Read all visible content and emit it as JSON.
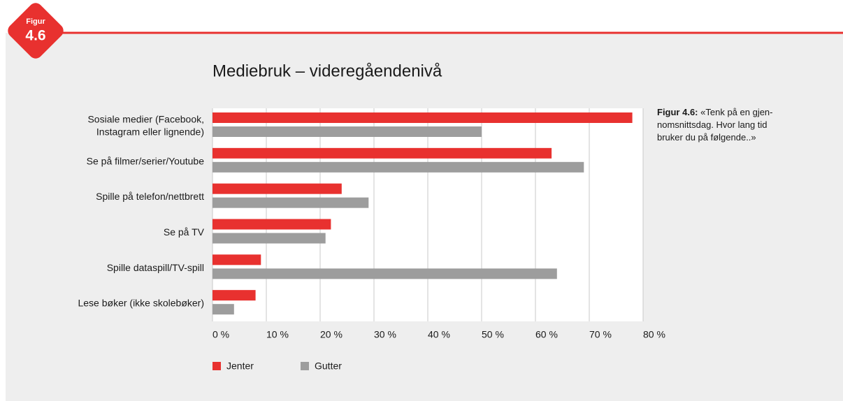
{
  "badge": {
    "label": "Figur",
    "number": "4.6"
  },
  "note": {
    "label": "Figur 4.6:",
    "text": "«Tenk på en gjen-\nnomsnittsdag. Hvor lang tid\nbruker du på følgende..»"
  },
  "chart_data": {
    "type": "hbar",
    "title": "Mediebruk – videregåendenivå",
    "categories": [
      "Sosiale medier (Facebook,\nInstagram eller lignende)",
      "Se på filmer/serier/Youtube",
      "Spille på telefon/nettbrett",
      "Se på TV",
      "Spille dataspill/TV-spill",
      "Lese bøker (ikke skolebøker)"
    ],
    "series": [
      {
        "name": "Jenter",
        "color": "#e8312f",
        "values": [
          78,
          63,
          24,
          22,
          9,
          8
        ]
      },
      {
        "name": "Gutter",
        "color": "#9d9d9d",
        "values": [
          50,
          69,
          29,
          21,
          64,
          4
        ]
      }
    ],
    "xlim": [
      0,
      80
    ],
    "xticks": [
      {
        "value": 0,
        "label": "0 %"
      },
      {
        "value": 10,
        "label": "10 %"
      },
      {
        "value": 20,
        "label": "20 %"
      },
      {
        "value": 30,
        "label": "30 %"
      },
      {
        "value": 40,
        "label": "40 %"
      },
      {
        "value": 50,
        "label": "50 %"
      },
      {
        "value": 60,
        "label": "60 %"
      },
      {
        "value": 70,
        "label": "70 %"
      },
      {
        "value": 80,
        "label": "80 %"
      }
    ],
    "grid": true,
    "legend": "bottom-left"
  }
}
